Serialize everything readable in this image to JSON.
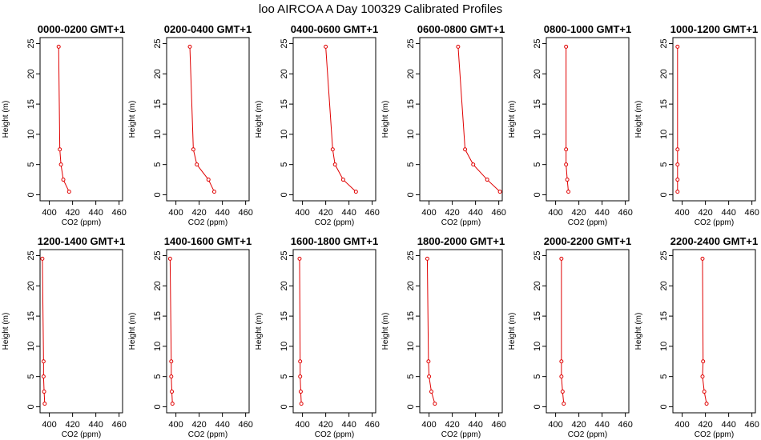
{
  "figure_title": "loo AIRCOA A  Day 100329  Calibrated Profiles",
  "colors": {
    "line": "#e00000",
    "point": "#e00000",
    "axis": "#000000",
    "background": "#ffffff"
  },
  "chart_data": [
    {
      "type": "line",
      "title": "0000-0200 GMT+1",
      "xlabel": "CO2 (ppm)",
      "ylabel": "Height (m)",
      "xlim": [
        392,
        463
      ],
      "ylim": [
        -1,
        26
      ],
      "xticks": [
        400,
        420,
        440,
        460
      ],
      "yticks": [
        0,
        5,
        10,
        15,
        20,
        25
      ],
      "grid": false,
      "series": [
        {
          "x": [
            417,
            412,
            410,
            409,
            408
          ],
          "y": [
            0.5,
            2.5,
            5,
            7.5,
            24.5
          ]
        }
      ]
    },
    {
      "type": "line",
      "title": "0200-0400 GMT+1",
      "xlabel": "CO2 (ppm)",
      "ylabel": "Height (m)",
      "xlim": [
        392,
        463
      ],
      "ylim": [
        -1,
        26
      ],
      "xticks": [
        400,
        420,
        440,
        460
      ],
      "yticks": [
        0,
        5,
        10,
        15,
        20,
        25
      ],
      "grid": false,
      "series": [
        {
          "x": [
            433,
            428,
            418,
            415,
            412
          ],
          "y": [
            0.5,
            2.5,
            5,
            7.5,
            24.5
          ]
        }
      ]
    },
    {
      "type": "line",
      "title": "0400-0600 GMT+1",
      "xlabel": "CO2 (ppm)",
      "ylabel": "Height (m)",
      "xlim": [
        392,
        463
      ],
      "ylim": [
        -1,
        26
      ],
      "xticks": [
        400,
        420,
        440,
        460
      ],
      "yticks": [
        0,
        5,
        10,
        15,
        20,
        25
      ],
      "grid": false,
      "series": [
        {
          "x": [
            446,
            435,
            428,
            426,
            420
          ],
          "y": [
            0.5,
            2.5,
            5,
            7.5,
            24.5
          ]
        }
      ]
    },
    {
      "type": "line",
      "title": "0600-0800 GMT+1",
      "xlabel": "CO2 (ppm)",
      "ylabel": "Height (m)",
      "xlim": [
        392,
        463
      ],
      "ylim": [
        -1,
        26
      ],
      "xticks": [
        400,
        420,
        440,
        460
      ],
      "yticks": [
        0,
        5,
        10,
        15,
        20,
        25
      ],
      "grid": false,
      "series": [
        {
          "x": [
            461,
            450,
            438,
            431,
            425
          ],
          "y": [
            0.5,
            2.5,
            5,
            7.5,
            24.5
          ]
        }
      ]
    },
    {
      "type": "line",
      "title": "0800-1000 GMT+1",
      "xlabel": "CO2 (ppm)",
      "ylabel": "Height (m)",
      "xlim": [
        392,
        463
      ],
      "ylim": [
        -1,
        26
      ],
      "xticks": [
        400,
        420,
        440,
        460
      ],
      "yticks": [
        0,
        5,
        10,
        15,
        20,
        25
      ],
      "grid": false,
      "series": [
        {
          "x": [
            411,
            410,
            409,
            409,
            409
          ],
          "y": [
            0.5,
            2.5,
            5,
            7.5,
            24.5
          ]
        }
      ]
    },
    {
      "type": "line",
      "title": "1000-1200 GMT+1",
      "xlabel": "CO2 (ppm)",
      "ylabel": "Height (m)",
      "xlim": [
        392,
        463
      ],
      "ylim": [
        -1,
        26
      ],
      "xticks": [
        400,
        420,
        440,
        460
      ],
      "yticks": [
        0,
        5,
        10,
        15,
        20,
        25
      ],
      "grid": false,
      "series": [
        {
          "x": [
            396,
            396,
            396,
            396,
            396
          ],
          "y": [
            0.5,
            2.5,
            5,
            7.5,
            24.5
          ]
        }
      ]
    },
    {
      "type": "line",
      "title": "1200-1400 GMT+1",
      "xlabel": "CO2 (ppm)",
      "ylabel": "Height (m)",
      "xlim": [
        392,
        463
      ],
      "ylim": [
        -1,
        26
      ],
      "xticks": [
        400,
        420,
        440,
        460
      ],
      "yticks": [
        0,
        5,
        10,
        15,
        20,
        25
      ],
      "grid": false,
      "series": [
        {
          "x": [
            396,
            395.5,
            395,
            395,
            394
          ],
          "y": [
            0.5,
            2.5,
            5,
            7.5,
            24.5
          ]
        }
      ]
    },
    {
      "type": "line",
      "title": "1400-1600 GMT+1",
      "xlabel": "CO2 (ppm)",
      "ylabel": "Height (m)",
      "xlim": [
        392,
        463
      ],
      "ylim": [
        -1,
        26
      ],
      "xticks": [
        400,
        420,
        440,
        460
      ],
      "yticks": [
        0,
        5,
        10,
        15,
        20,
        25
      ],
      "grid": false,
      "series": [
        {
          "x": [
            397,
            396.5,
            396,
            396,
            395
          ],
          "y": [
            0.5,
            2.5,
            5,
            7.5,
            24.5
          ]
        }
      ]
    },
    {
      "type": "line",
      "title": "1600-1800 GMT+1",
      "xlabel": "CO2 (ppm)",
      "ylabel": "Height (m)",
      "xlim": [
        392,
        463
      ],
      "ylim": [
        -1,
        26
      ],
      "xticks": [
        400,
        420,
        440,
        460
      ],
      "yticks": [
        0,
        5,
        10,
        15,
        20,
        25
      ],
      "grid": false,
      "series": [
        {
          "x": [
            399,
            398.5,
            398,
            398,
            397.5
          ],
          "y": [
            0.5,
            2.5,
            5,
            7.5,
            24.5
          ]
        }
      ]
    },
    {
      "type": "line",
      "title": "1800-2000 GMT+1",
      "xlabel": "CO2 (ppm)",
      "ylabel": "Height (m)",
      "xlim": [
        392,
        463
      ],
      "ylim": [
        -1,
        26
      ],
      "xticks": [
        400,
        420,
        440,
        460
      ],
      "yticks": [
        0,
        5,
        10,
        15,
        20,
        25
      ],
      "grid": false,
      "series": [
        {
          "x": [
            405,
            402,
            400,
            399.5,
            398.5
          ],
          "y": [
            0.5,
            2.5,
            5,
            7.5,
            24.5
          ]
        }
      ]
    },
    {
      "type": "line",
      "title": "2000-2200 GMT+1",
      "xlabel": "CO2 (ppm)",
      "ylabel": "Height (m)",
      "xlim": [
        392,
        463
      ],
      "ylim": [
        -1,
        26
      ],
      "xticks": [
        400,
        420,
        440,
        460
      ],
      "yticks": [
        0,
        5,
        10,
        15,
        20,
        25
      ],
      "grid": false,
      "series": [
        {
          "x": [
            407,
            406,
            405,
            405,
            405
          ],
          "y": [
            0.5,
            2.5,
            5,
            7.5,
            24.5
          ]
        }
      ]
    },
    {
      "type": "line",
      "title": "2200-2400 GMT+1",
      "xlabel": "CO2 (ppm)",
      "ylabel": "Height (m)",
      "xlim": [
        392,
        463
      ],
      "ylim": [
        -1,
        26
      ],
      "xticks": [
        400,
        420,
        440,
        460
      ],
      "yticks": [
        0,
        5,
        10,
        15,
        20,
        25
      ],
      "grid": false,
      "series": [
        {
          "x": [
            421,
            419,
            417.5,
            418,
            417.5
          ],
          "y": [
            0.5,
            2.5,
            5,
            7.5,
            24.5
          ]
        }
      ]
    }
  ]
}
